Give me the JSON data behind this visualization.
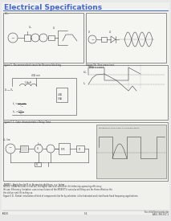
{
  "title": "Electrical Specifications",
  "title_color": "#4466cc",
  "title_underline_color": "#4466cc",
  "bg_color": "#e8e8e8",
  "page_bg": "#d8d8d8",
  "box_border_color": "#666666",
  "line_color": "#444444",
  "text_color": "#333333",
  "footer_left": "IB4XX",
  "footer_center": "5-6",
  "footer_right": "Fairchild Semiconductor\nAN-6. 990-917-1",
  "fig_width": 2.13,
  "fig_height": 2.75,
  "dpi": 100
}
